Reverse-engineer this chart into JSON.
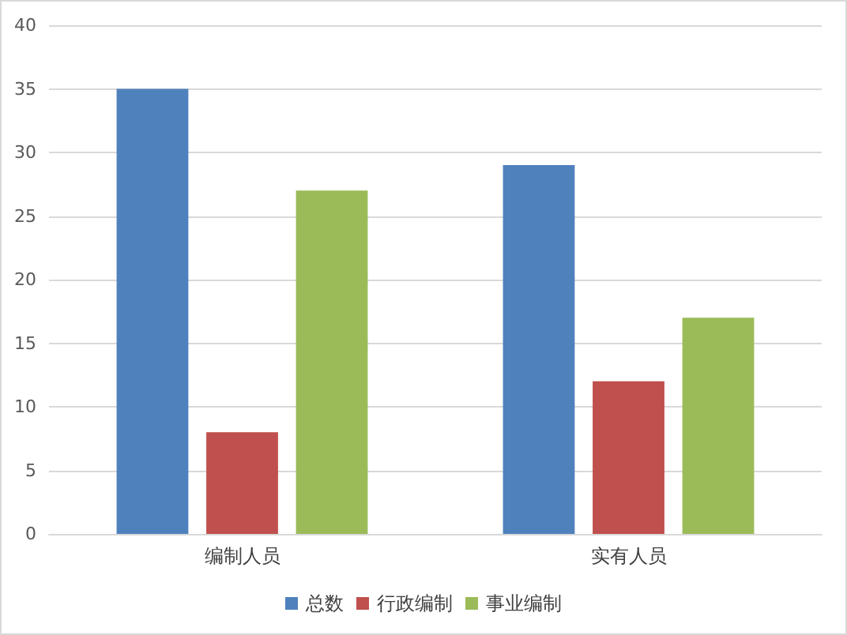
{
  "chart_data": {
    "type": "bar",
    "categories": [
      "编制人员",
      "实有人员"
    ],
    "series": [
      {
        "name": "总数",
        "color": "#4f81bd",
        "values": [
          35,
          29
        ]
      },
      {
        "name": "行政编制",
        "color": "#c0504d",
        "values": [
          8,
          12
        ]
      },
      {
        "name": "事业编制",
        "color": "#9bbb59",
        "values": [
          27,
          17
        ]
      }
    ],
    "ylim": [
      0,
      40
    ],
    "yticks": [
      0,
      5,
      10,
      15,
      20,
      25,
      30,
      35,
      40
    ],
    "grid": "y",
    "legend": "bottom"
  }
}
